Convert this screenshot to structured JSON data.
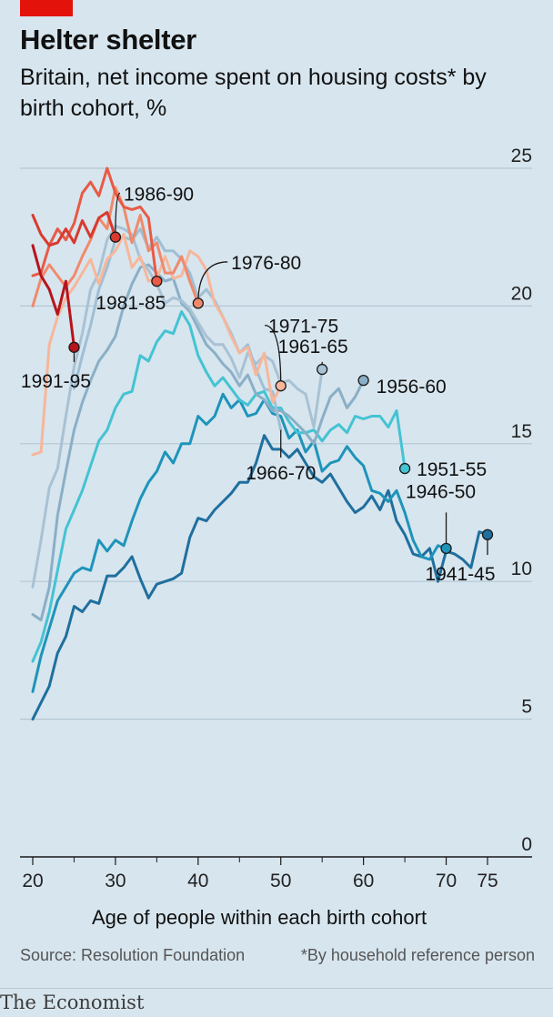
{
  "header": {
    "title": "Helter shelter",
    "subtitle": "Britain, net income spent on housing costs* by birth cohort, %"
  },
  "footer": {
    "source": "Source: Resolution Foundation",
    "note": "*By household reference person",
    "brand": "The Economist"
  },
  "chart_data": {
    "type": "line",
    "title": "Helter shelter",
    "xlabel": "Age of people within each birth cohort",
    "ylabel": "",
    "xlim": [
      19,
      78
    ],
    "ylim": [
      0,
      25
    ],
    "x_ticks": [
      "20",
      "30",
      "40",
      "50",
      "60",
      "70",
      "75"
    ],
    "y_ticks": [
      "0",
      "5",
      "10",
      "15",
      "20",
      "25"
    ],
    "grid": true,
    "series": [
      {
        "name": "1941-45",
        "color": "#1f6f9e",
        "label_x": 75,
        "label_y": 10.5,
        "end_marker": true,
        "x": [
          20,
          21,
          22,
          23,
          24,
          25,
          26,
          27,
          28,
          29,
          30,
          31,
          32,
          33,
          34,
          35,
          36,
          37,
          38,
          39,
          40,
          41,
          42,
          43,
          44,
          45,
          46,
          47,
          48,
          49,
          50,
          51,
          52,
          53,
          54,
          55,
          56,
          57,
          58,
          59,
          60,
          61,
          62,
          63,
          64,
          65,
          66,
          67,
          68,
          69,
          70,
          71,
          72,
          73,
          74,
          75
        ],
        "y": [
          5.0,
          5.6,
          6.2,
          7.4,
          8.0,
          9.1,
          8.9,
          9.3,
          9.2,
          10.2,
          10.2,
          10.5,
          10.9,
          10.1,
          9.4,
          9.9,
          10.0,
          10.1,
          10.3,
          11.6,
          12.3,
          12.2,
          12.6,
          12.9,
          13.2,
          13.6,
          13.6,
          14.3,
          15.3,
          14.8,
          14.8,
          14.5,
          14.8,
          14.3,
          13.8,
          13.6,
          13.9,
          13.4,
          12.9,
          12.5,
          12.7,
          13.1,
          12.6,
          13.3,
          12.2,
          11.7,
          11.0,
          10.9,
          11.2,
          10.0,
          11.1,
          11.0,
          10.8,
          10.5,
          11.8,
          11.7
        ]
      },
      {
        "name": "1946-50",
        "color": "#1e94ba",
        "label_x": 70,
        "label_y": 12.9,
        "end_marker": true,
        "x": [
          20,
          21,
          22,
          23,
          24,
          25,
          26,
          27,
          28,
          29,
          30,
          31,
          32,
          33,
          34,
          35,
          36,
          37,
          38,
          39,
          40,
          41,
          42,
          43,
          44,
          45,
          46,
          47,
          48,
          49,
          50,
          51,
          52,
          53,
          54,
          55,
          56,
          57,
          58,
          59,
          60,
          61,
          62,
          63,
          64,
          65,
          66,
          67,
          68,
          69,
          70
        ],
        "y": [
          6.0,
          7.3,
          8.3,
          9.3,
          9.8,
          10.3,
          10.5,
          10.4,
          11.5,
          11.1,
          11.5,
          11.3,
          12.2,
          13.0,
          13.6,
          14.0,
          14.7,
          14.3,
          15.0,
          15.0,
          16.0,
          15.7,
          16.0,
          16.8,
          16.3,
          16.6,
          16.0,
          16.1,
          16.6,
          16.1,
          16.0,
          15.2,
          15.5,
          14.7,
          15.1,
          14.0,
          14.3,
          14.4,
          14.9,
          14.5,
          14.2,
          13.3,
          13.2,
          12.9,
          13.3,
          12.5,
          11.5,
          10.9,
          10.8,
          11.3,
          11.2
        ]
      },
      {
        "name": "1951-55",
        "color": "#44c3d3",
        "label_x": 66,
        "label_y": 14.1,
        "end_marker": true,
        "x": [
          20,
          21,
          22,
          23,
          24,
          25,
          26,
          27,
          28,
          29,
          30,
          31,
          32,
          33,
          34,
          35,
          36,
          37,
          38,
          39,
          40,
          41,
          42,
          43,
          44,
          45,
          46,
          47,
          48,
          49,
          50,
          51,
          52,
          53,
          54,
          55,
          56,
          57,
          58,
          59,
          60,
          61,
          62,
          63,
          64,
          65
        ],
        "y": [
          7.1,
          7.8,
          8.9,
          10.4,
          11.9,
          12.6,
          13.3,
          14.2,
          15.1,
          15.5,
          16.3,
          16.8,
          16.9,
          18.2,
          18.0,
          18.7,
          19.1,
          19.0,
          19.8,
          19.3,
          18.2,
          17.6,
          17.1,
          17.4,
          17.0,
          16.6,
          16.4,
          16.8,
          16.9,
          16.3,
          16.3,
          15.8,
          15.4,
          15.4,
          15.5,
          15.1,
          15.5,
          15.7,
          15.4,
          16.0,
          15.9,
          16.0,
          16.0,
          15.6,
          16.2,
          14.1
        ]
      },
      {
        "name": "1956-60",
        "color": "#8aafc7",
        "label_x": 61,
        "label_y": 17.1,
        "end_marker": true,
        "x": [
          20,
          21,
          22,
          23,
          24,
          25,
          26,
          27,
          28,
          29,
          30,
          31,
          32,
          33,
          34,
          35,
          36,
          37,
          38,
          39,
          40,
          41,
          42,
          43,
          44,
          45,
          46,
          47,
          48,
          49,
          50,
          51,
          52,
          53,
          54,
          55,
          56,
          57,
          58,
          59,
          60
        ],
        "y": [
          8.8,
          8.6,
          9.8,
          12.4,
          14.0,
          15.5,
          16.5,
          17.3,
          18.0,
          18.4,
          18.9,
          20.0,
          20.8,
          21.4,
          21.5,
          21.2,
          20.9,
          21.0,
          20.1,
          19.8,
          19.2,
          18.6,
          18.3,
          17.9,
          17.6,
          17.1,
          17.5,
          16.8,
          16.6,
          16.2,
          16.2,
          16.0,
          15.7,
          15.4,
          15.0,
          15.9,
          16.7,
          17.0,
          16.3,
          16.7,
          17.3
        ]
      },
      {
        "name": "1961-65",
        "color": "#a8c2d4",
        "label_x": 55,
        "label_y": 18.3,
        "end_marker": true,
        "x": [
          20,
          21,
          22,
          23,
          24,
          25,
          26,
          27,
          28,
          29,
          30,
          31,
          32,
          33,
          34,
          35,
          36,
          37,
          38,
          39,
          40,
          41,
          42,
          43,
          44,
          45,
          46,
          47,
          48,
          49,
          50,
          51,
          52,
          53,
          54,
          55
        ],
        "y": [
          9.8,
          11.5,
          13.4,
          14.1,
          16.0,
          17.8,
          19.0,
          20.6,
          21.2,
          22.4,
          22.9,
          22.8,
          22.6,
          21.7,
          21.3,
          20.8,
          20.1,
          20.3,
          20.2,
          19.9,
          19.4,
          18.9,
          18.6,
          18.6,
          18.1,
          17.4,
          18.3,
          17.9,
          18.2,
          18.0,
          17.2,
          17.3,
          17.0,
          16.8,
          15.6,
          17.7
        ]
      },
      {
        "name": "1966-70",
        "color": "#9fbfd4",
        "label_x": 50,
        "label_y": 14.1,
        "end_marker": false,
        "x": [
          25,
          26,
          27,
          28,
          29,
          30,
          31,
          32,
          33,
          34,
          35,
          36,
          37,
          38,
          39,
          40,
          41,
          42,
          43,
          44,
          45,
          46,
          47,
          48,
          49,
          50
        ],
        "y": [
          17.0,
          18.2,
          19.3,
          20.6,
          21.4,
          22.4,
          22.5,
          22.4,
          22.8,
          22.1,
          22.5,
          22.0,
          22.0,
          21.7,
          21.2,
          20.3,
          20.6,
          20.2,
          19.6,
          19.0,
          18.3,
          18.6,
          17.7,
          17.0,
          16.9,
          15.5
        ]
      },
      {
        "name": "1971-75",
        "color": "#f7b69a",
        "label_x": 48.5,
        "label_y": 19.3,
        "end_marker": true,
        "x": [
          20,
          21,
          22,
          23,
          24,
          25,
          26,
          27,
          28,
          29,
          30,
          31,
          32,
          33,
          34,
          35,
          36,
          37,
          38,
          39,
          40,
          41,
          42,
          43,
          44,
          45,
          46,
          47,
          48,
          49,
          50
        ],
        "y": [
          14.6,
          14.7,
          18.6,
          19.6,
          20.3,
          20.7,
          21.2,
          21.7,
          20.8,
          21.7,
          22.0,
          22.6,
          21.4,
          21.8,
          20.9,
          21.0,
          21.8,
          21.0,
          21.1,
          22.0,
          21.8,
          21.3,
          20.1,
          19.6,
          18.9,
          18.3,
          18.5,
          17.5,
          18.3,
          16.5,
          17.1
        ]
      },
      {
        "name": "1976-80",
        "color": "#f08a6c",
        "label_x": 44,
        "label_y": 21.6,
        "end_marker": true,
        "x": [
          20,
          21,
          22,
          23,
          24,
          25,
          26,
          27,
          28,
          29,
          30,
          31,
          32,
          33,
          34,
          35,
          36,
          37,
          38,
          39,
          40
        ],
        "y": [
          20.0,
          21.0,
          21.5,
          21.1,
          20.7,
          21.1,
          21.8,
          22.4,
          23.2,
          22.8,
          24.3,
          23.6,
          22.3,
          23.3,
          22.0,
          22.3,
          21.2,
          21.2,
          21.8,
          20.9,
          20.1
        ]
      },
      {
        "name": "1981-85",
        "color": "#e85a45",
        "label_x": 35,
        "label_y": 20.6,
        "end_marker": true,
        "x": [
          20,
          21,
          22,
          23,
          24,
          25,
          26,
          27,
          28,
          29,
          30,
          31,
          32,
          33,
          34,
          35
        ],
        "y": [
          21.1,
          21.2,
          22.2,
          22.8,
          22.4,
          23.0,
          24.1,
          24.5,
          24.0,
          25.0,
          24.1,
          23.6,
          23.5,
          23.6,
          23.2,
          20.9
        ]
      },
      {
        "name": "1986-90",
        "color": "#d93a2e",
        "label_x": 31,
        "label_y": 24.1,
        "end_marker": true,
        "x": [
          20,
          21,
          22,
          23,
          24,
          25,
          26,
          27,
          28,
          29,
          30
        ],
        "y": [
          23.3,
          22.6,
          22.2,
          22.3,
          22.8,
          22.3,
          23.1,
          22.5,
          23.2,
          23.4,
          22.5
        ]
      },
      {
        "name": "1991-95",
        "color": "#b7141c",
        "label_x": 22.5,
        "label_y": 17.5,
        "end_marker": true,
        "x": [
          20,
          21,
          22,
          23,
          24,
          25
        ],
        "y": [
          22.2,
          21.1,
          20.6,
          19.7,
          20.9,
          18.5
        ]
      }
    ]
  }
}
